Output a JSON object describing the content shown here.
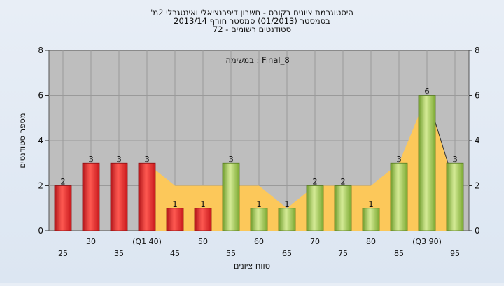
{
  "chart_data": {
    "type": "bar",
    "title_lines": [
      "'היסטוגרמת ציונים בקורס - חשבון דיפרנציאלי ואינטגרלי 2מ",
      "בסמסטר  (01/2013)  סמסטר חורף 2013/14",
      "סטודנטים רשומים - 72"
    ],
    "annotation": "במשימה : Final_8",
    "xlabel": "טווח ציונים",
    "ylabel": "מספר סטודנטים",
    "ylim": [
      0,
      8
    ],
    "yticks": [
      0,
      2,
      4,
      6,
      8
    ],
    "categories": [
      "25",
      "30",
      "35",
      "(Q1 40)",
      "45",
      "50",
      "55",
      "60",
      "65",
      "70",
      "75",
      "80",
      "85",
      "(Q3 90)",
      "95"
    ],
    "values": [
      2,
      3,
      3,
      3,
      1,
      1,
      3,
      1,
      1,
      2,
      2,
      1,
      3,
      6,
      3
    ],
    "bar_colors": [
      "red",
      "red",
      "red",
      "red",
      "red",
      "red",
      "green",
      "green",
      "green",
      "green",
      "green",
      "green",
      "green",
      "green",
      "green"
    ],
    "area_values": [
      null,
      null,
      null,
      3,
      2,
      2,
      2,
      2,
      1,
      2,
      2,
      2,
      3,
      6,
      2
    ],
    "colors": {
      "red": "#e0282c",
      "green": "#9cc54a",
      "area": "#fcc85a",
      "plot_bg": "#bebebe",
      "grid": "#9a9a9a"
    },
    "grid": true
  }
}
